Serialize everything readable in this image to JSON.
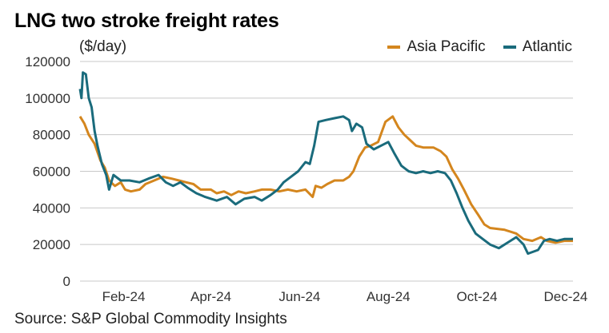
{
  "chart_data": {
    "type": "line",
    "title": "LNG two stroke freight rates",
    "ylabel": "($/day)",
    "source": "Source: S&P Global Commodity Insights",
    "ylim": [
      0,
      120000
    ],
    "y_ticks": [
      0,
      20000,
      40000,
      60000,
      80000,
      100000,
      120000
    ],
    "y_tick_labels": [
      "0",
      "20000",
      "40000",
      "60000",
      "80000",
      "100000",
      "120000"
    ],
    "x_ticks": [
      "2024-02-01",
      "2024-04-01",
      "2024-06-01",
      "2024-08-01",
      "2024-10-01",
      "2024-12-01"
    ],
    "x_tick_labels": [
      "Feb-24",
      "Apr-24",
      "Jun-24",
      "Aug-24",
      "Oct-24",
      "Dec-24"
    ],
    "x_range": [
      "2024-01-02",
      "2024-12-06"
    ],
    "grid": true,
    "legend": "top-right",
    "series": [
      {
        "name": "Asia Pacific",
        "color": "#d4861e",
        "points": [
          [
            "2024-01-02",
            90000
          ],
          [
            "2024-01-05",
            86000
          ],
          [
            "2024-01-08",
            80000
          ],
          [
            "2024-01-12",
            75000
          ],
          [
            "2024-01-16",
            66000
          ],
          [
            "2024-01-19",
            62000
          ],
          [
            "2024-01-22",
            55000
          ],
          [
            "2024-01-26",
            52000
          ],
          [
            "2024-01-30",
            54000
          ],
          [
            "2024-02-02",
            50000
          ],
          [
            "2024-02-06",
            49000
          ],
          [
            "2024-02-12",
            50000
          ],
          [
            "2024-02-16",
            53000
          ],
          [
            "2024-02-22",
            55000
          ],
          [
            "2024-02-28",
            57000
          ],
          [
            "2024-03-05",
            56000
          ],
          [
            "2024-03-10",
            55000
          ],
          [
            "2024-03-15",
            54000
          ],
          [
            "2024-03-20",
            53000
          ],
          [
            "2024-03-25",
            50000
          ],
          [
            "2024-04-01",
            50000
          ],
          [
            "2024-04-05",
            48000
          ],
          [
            "2024-04-10",
            49000
          ],
          [
            "2024-04-15",
            47000
          ],
          [
            "2024-04-20",
            49000
          ],
          [
            "2024-04-25",
            48000
          ],
          [
            "2024-05-01",
            49000
          ],
          [
            "2024-05-06",
            50000
          ],
          [
            "2024-05-12",
            50000
          ],
          [
            "2024-05-18",
            49000
          ],
          [
            "2024-05-24",
            50000
          ],
          [
            "2024-05-30",
            49000
          ],
          [
            "2024-06-05",
            50000
          ],
          [
            "2024-06-10",
            46000
          ],
          [
            "2024-06-12",
            52000
          ],
          [
            "2024-06-16",
            51000
          ],
          [
            "2024-06-20",
            53000
          ],
          [
            "2024-06-25",
            55000
          ],
          [
            "2024-07-01",
            55000
          ],
          [
            "2024-07-05",
            57000
          ],
          [
            "2024-07-08",
            60000
          ],
          [
            "2024-07-12",
            68000
          ],
          [
            "2024-07-16",
            73000
          ],
          [
            "2024-07-20",
            74000
          ],
          [
            "2024-07-25",
            76000
          ],
          [
            "2024-07-30",
            87000
          ],
          [
            "2024-08-04",
            90000
          ],
          [
            "2024-08-08",
            84000
          ],
          [
            "2024-08-12",
            80000
          ],
          [
            "2024-08-16",
            77000
          ],
          [
            "2024-08-20",
            74000
          ],
          [
            "2024-08-25",
            73000
          ],
          [
            "2024-09-01",
            73000
          ],
          [
            "2024-09-06",
            71000
          ],
          [
            "2024-09-10",
            68000
          ],
          [
            "2024-09-14",
            61000
          ],
          [
            "2024-09-18",
            56000
          ],
          [
            "2024-09-22",
            50000
          ],
          [
            "2024-09-27",
            42000
          ],
          [
            "2024-10-02",
            36000
          ],
          [
            "2024-10-06",
            31000
          ],
          [
            "2024-10-10",
            29000
          ],
          [
            "2024-10-20",
            28000
          ],
          [
            "2024-10-28",
            26000
          ],
          [
            "2024-11-02",
            23000
          ],
          [
            "2024-11-08",
            22000
          ],
          [
            "2024-11-14",
            24000
          ],
          [
            "2024-11-18",
            22000
          ],
          [
            "2024-11-24",
            21000
          ],
          [
            "2024-11-30",
            22000
          ],
          [
            "2024-12-06",
            22000
          ]
        ]
      },
      {
        "name": "Atlantic",
        "color": "#1a6b7c",
        "points": [
          [
            "2024-01-02",
            105000
          ],
          [
            "2024-01-03",
            100000
          ],
          [
            "2024-01-04",
            114000
          ],
          [
            "2024-01-06",
            113000
          ],
          [
            "2024-01-08",
            100000
          ],
          [
            "2024-01-10",
            95000
          ],
          [
            "2024-01-12",
            82000
          ],
          [
            "2024-01-14",
            74000
          ],
          [
            "2024-01-17",
            64000
          ],
          [
            "2024-01-20",
            58000
          ],
          [
            "2024-01-22",
            50000
          ],
          [
            "2024-01-25",
            58000
          ],
          [
            "2024-01-30",
            55000
          ],
          [
            "2024-02-05",
            55000
          ],
          [
            "2024-02-12",
            54000
          ],
          [
            "2024-02-18",
            56000
          ],
          [
            "2024-02-25",
            58000
          ],
          [
            "2024-03-01",
            54000
          ],
          [
            "2024-03-06",
            52000
          ],
          [
            "2024-03-11",
            54000
          ],
          [
            "2024-03-16",
            51000
          ],
          [
            "2024-03-22",
            48000
          ],
          [
            "2024-03-28",
            46000
          ],
          [
            "2024-04-05",
            44000
          ],
          [
            "2024-04-12",
            46000
          ],
          [
            "2024-04-18",
            42000
          ],
          [
            "2024-04-24",
            45000
          ],
          [
            "2024-05-01",
            46000
          ],
          [
            "2024-05-06",
            44000
          ],
          [
            "2024-05-12",
            47000
          ],
          [
            "2024-05-17",
            50000
          ],
          [
            "2024-05-21",
            54000
          ],
          [
            "2024-05-26",
            57000
          ],
          [
            "2024-05-31",
            60000
          ],
          [
            "2024-06-05",
            65000
          ],
          [
            "2024-06-08",
            64000
          ],
          [
            "2024-06-11",
            74000
          ],
          [
            "2024-06-14",
            87000
          ],
          [
            "2024-06-19",
            88000
          ],
          [
            "2024-06-25",
            89000
          ],
          [
            "2024-07-01",
            90000
          ],
          [
            "2024-07-05",
            88000
          ],
          [
            "2024-07-07",
            82000
          ],
          [
            "2024-07-10",
            86000
          ],
          [
            "2024-07-14",
            84000
          ],
          [
            "2024-07-17",
            75000
          ],
          [
            "2024-07-22",
            72000
          ],
          [
            "2024-07-27",
            74000
          ],
          [
            "2024-08-01",
            76000
          ],
          [
            "2024-08-05",
            70000
          ],
          [
            "2024-08-10",
            63000
          ],
          [
            "2024-08-15",
            60000
          ],
          [
            "2024-08-20",
            59000
          ],
          [
            "2024-08-25",
            60000
          ],
          [
            "2024-08-30",
            59000
          ],
          [
            "2024-09-04",
            60000
          ],
          [
            "2024-09-09",
            59000
          ],
          [
            "2024-09-13",
            55000
          ],
          [
            "2024-09-17",
            48000
          ],
          [
            "2024-09-21",
            40000
          ],
          [
            "2024-09-25",
            33000
          ],
          [
            "2024-09-30",
            26000
          ],
          [
            "2024-10-05",
            23000
          ],
          [
            "2024-10-10",
            20000
          ],
          [
            "2024-10-16",
            18000
          ],
          [
            "2024-10-22",
            21000
          ],
          [
            "2024-10-28",
            24000
          ],
          [
            "2024-11-02",
            20000
          ],
          [
            "2024-11-05",
            15000
          ],
          [
            "2024-11-12",
            17000
          ],
          [
            "2024-11-16",
            22000
          ],
          [
            "2024-11-20",
            23000
          ],
          [
            "2024-11-25",
            22000
          ],
          [
            "2024-11-30",
            23000
          ],
          [
            "2024-12-06",
            23000
          ]
        ]
      }
    ]
  }
}
